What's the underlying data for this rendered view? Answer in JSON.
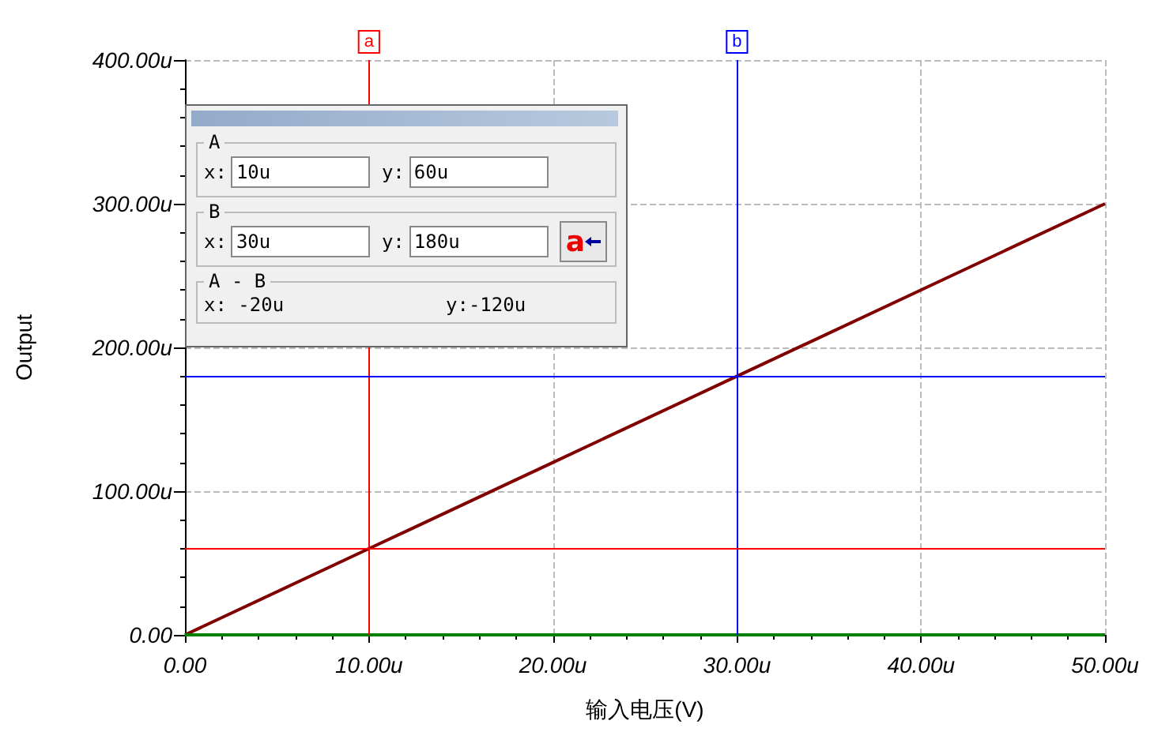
{
  "chart_data": {
    "type": "line",
    "xlabel": "输入电压(V)",
    "ylabel": "Output",
    "x": [
      0,
      10,
      20,
      30,
      40,
      50
    ],
    "series": [
      {
        "color": "#800000",
        "values": [
          0,
          60,
          120,
          180,
          240,
          300
        ]
      },
      {
        "color": "#008000",
        "values": [
          0,
          0,
          0,
          0,
          0,
          0
        ]
      }
    ],
    "xlim": [
      0,
      50
    ],
    "ylim": [
      0,
      400
    ],
    "xticks": [
      {
        "value": 0,
        "label": "0.00"
      },
      {
        "value": 10,
        "label": "10.00u"
      },
      {
        "value": 20,
        "label": "20.00u"
      },
      {
        "value": 30,
        "label": "30.00u"
      },
      {
        "value": 40,
        "label": "40.00u"
      },
      {
        "value": 50,
        "label": "50.00u"
      }
    ],
    "yticks": [
      {
        "value": 0,
        "label": "0.00"
      },
      {
        "value": 100,
        "label": "100.00u"
      },
      {
        "value": 200,
        "label": "200.00u"
      },
      {
        "value": 300,
        "label": "300.00u"
      },
      {
        "value": 400,
        "label": "400.00u"
      }
    ],
    "ref_lines": [
      {
        "axis": "x",
        "value": 10,
        "label": "a",
        "color": "#ff0000"
      },
      {
        "axis": "x",
        "value": 30,
        "label": "b",
        "color": "#0000ff"
      },
      {
        "axis": "y",
        "value": 60,
        "label": null,
        "color": "#ff0000"
      },
      {
        "axis": "y",
        "value": 180,
        "label": null,
        "color": "#0000ff"
      }
    ],
    "annotations": [
      "A",
      "x:",
      "10u",
      "y:",
      "60u",
      "B",
      "x:",
      "30u",
      "y:",
      "180u",
      "a",
      "A - B",
      "x: -20u",
      "y:-120u"
    ],
    "grid": true,
    "marker": "none",
    "line_style": "solid"
  }
}
